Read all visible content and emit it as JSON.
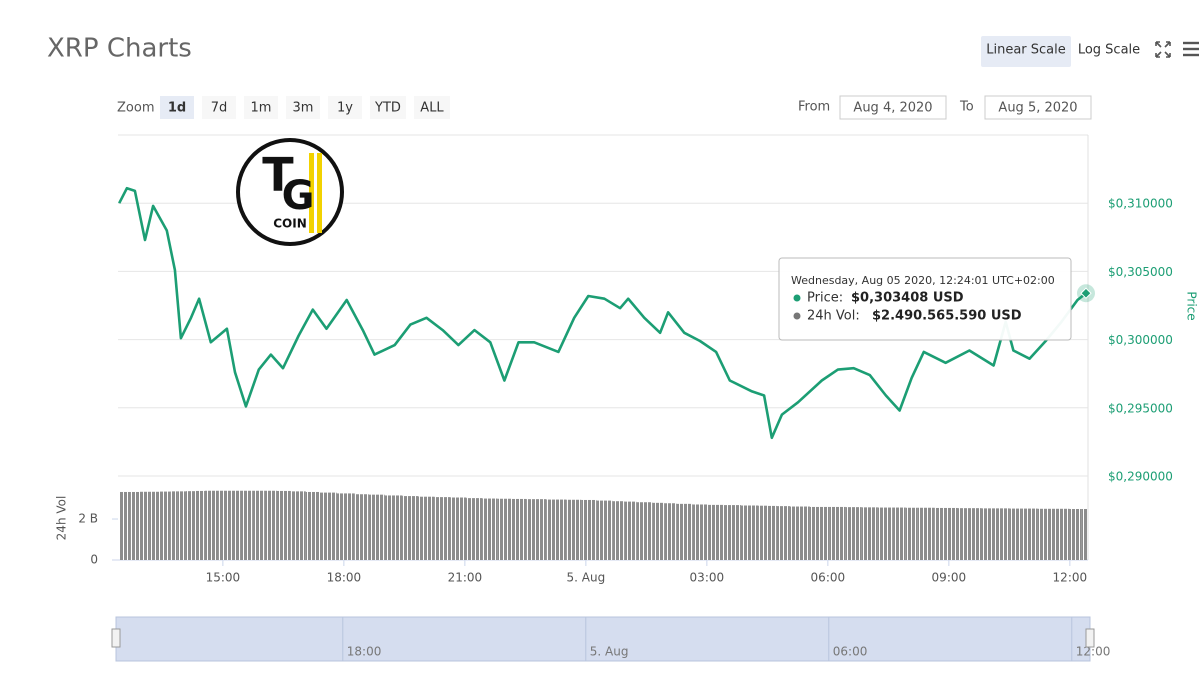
{
  "header": {
    "title": "XRP Charts",
    "scale_buttons": [
      "Linear Scale",
      "Log Scale"
    ]
  },
  "range_selector": {
    "label": "Zoom",
    "buttons": [
      "1d",
      "7d",
      "1m",
      "3m",
      "1y",
      "YTD",
      "ALL"
    ],
    "from_label": "From",
    "from": "Aug 4, 2020",
    "to_label": "To",
    "to": "Aug 5, 2020"
  },
  "logo": {
    "letters": [
      "T",
      "G"
    ],
    "text": "COIN"
  },
  "chart_data": {
    "type": "line",
    "x": [
      12.43,
      12.62,
      12.82,
      13.07,
      13.27,
      13.61,
      13.81,
      13.96,
      14.21,
      14.41,
      14.7,
      15.1,
      15.3,
      15.57,
      15.89,
      16.19,
      16.49,
      16.88,
      17.23,
      17.57,
      18.07,
      18.47,
      18.76,
      19.26,
      19.65,
      20.05,
      20.45,
      20.84,
      21.24,
      21.63,
      21.98,
      22.33,
      22.72,
      23.32,
      23.71,
      24.06,
      24.46,
      24.85,
      25.05,
      25.45,
      25.84,
      26.04,
      26.44,
      26.83,
      27.23,
      27.57,
      28.12,
      28.42,
      28.61,
      28.86,
      29.26,
      29.85,
      30.25,
      30.64,
      31.04,
      31.44,
      31.78,
      32.08,
      32.38,
      32.92,
      33.51,
      34.11,
      34.41,
      34.6,
      35.0,
      35.4,
      35.79,
      36.19,
      36.4
    ],
    "series": [
      {
        "name": "Price",
        "color": "#1c9e74",
        "values": [
          0.31,
          0.3111,
          0.3109,
          0.3073,
          0.3098,
          0.308,
          0.3051,
          0.3001,
          0.3016,
          0.303,
          0.2998,
          0.3008,
          0.2976,
          0.2951,
          0.2978,
          0.2989,
          0.2979,
          0.3003,
          0.3022,
          0.3008,
          0.3029,
          0.3007,
          0.2989,
          0.2996,
          0.3011,
          0.3016,
          0.3007,
          0.2996,
          0.3007,
          0.2998,
          0.297,
          0.2998,
          0.2998,
          0.2991,
          0.3016,
          0.3032,
          0.303,
          0.3023,
          0.303,
          0.3016,
          0.3005,
          0.302,
          0.3005,
          0.2999,
          0.2991,
          0.297,
          0.2962,
          0.2959,
          0.2928,
          0.2945,
          0.2954,
          0.297,
          0.2978,
          0.2979,
          0.2974,
          0.2959,
          0.2948,
          0.2972,
          0.2991,
          0.2983,
          0.2992,
          0.2981,
          0.3013,
          0.2992,
          0.2986,
          0.2999,
          0.3013,
          0.3029,
          0.3034
        ]
      },
      {
        "name": "24h Vol",
        "color": "#8c8c8c",
        "axis": "y2",
        "values": [
          3320000000.0,
          3320000000.0,
          3320000000.0,
          3330000000.0,
          3330000000.0,
          3340000000.0,
          3350000000.0,
          3350000000.0,
          3360000000.0,
          3370000000.0,
          3380000000.0,
          3380000000.0,
          3380000000.0,
          3380000000.0,
          3380000000.0,
          3380000000.0,
          3370000000.0,
          3350000000.0,
          3320000000.0,
          3290000000.0,
          3250000000.0,
          3210000000.0,
          3190000000.0,
          3150000000.0,
          3120000000.0,
          3090000000.0,
          3070000000.0,
          3050000000.0,
          3020000000.0,
          3000000000.0,
          2990000000.0,
          2980000000.0,
          2970000000.0,
          2950000000.0,
          2940000000.0,
          2930000000.0,
          2900000000.0,
          2870000000.0,
          2850000000.0,
          2820000000.0,
          2790000000.0,
          2770000000.0,
          2740000000.0,
          2710000000.0,
          2690000000.0,
          2680000000.0,
          2660000000.0,
          2650000000.0,
          2640000000.0,
          2630000000.0,
          2610000000.0,
          2590000000.0,
          2590000000.0,
          2580000000.0,
          2570000000.0,
          2560000000.0,
          2560000000.0,
          2550000000.0,
          2550000000.0,
          2540000000.0,
          2530000000.0,
          2520000000.0,
          2520000000.0,
          2510000000.0,
          2510000000.0,
          2500000000.0,
          2500000000.0,
          2490000000.0,
          2490000000.0
        ]
      }
    ],
    "xlim": [
      12.4,
      36.45
    ],
    "xticks": [
      {
        "value": 15,
        "label": "15:00"
      },
      {
        "value": 18,
        "label": "18:00"
      },
      {
        "value": 21,
        "label": "21:00"
      },
      {
        "value": 24,
        "label": "5. Aug"
      },
      {
        "value": 27,
        "label": "03:00"
      },
      {
        "value": 30,
        "label": "06:00"
      },
      {
        "value": 33,
        "label": "09:00"
      },
      {
        "value": 36,
        "label": "12:00"
      }
    ],
    "ylim": [
      0.29,
      0.315
    ],
    "yticks": [
      {
        "value": 0.29,
        "label": "$0,290000"
      },
      {
        "value": 0.295,
        "label": "$0,295000"
      },
      {
        "value": 0.3,
        "label": "$0,300000"
      },
      {
        "value": 0.305,
        "label": "$0,305000"
      },
      {
        "value": 0.31,
        "label": "$0,310000"
      }
    ],
    "y2lim": [
      0,
      4100000000.0
    ],
    "y2ticks": [
      0,
      {
        "value": 2000000000.0,
        "label": "2 B"
      }
    ],
    "grid": true,
    "tooltip": {
      "date": "Wednesday, Aug 05 2020, 12:24:01 UTC+02:00",
      "rows": [
        {
          "label": "Price:",
          "value": "$0,303408 USD"
        },
        {
          "label": "24h Vol:",
          "value": "$2.490.565.590 USD"
        }
      ]
    },
    "navigator": {
      "xticks": [
        {
          "value": 18,
          "label": "18:00"
        },
        {
          "value": 24,
          "label": "5. Aug"
        },
        {
          "value": 30,
          "label": "06:00"
        },
        {
          "value": 36,
          "label": "12:00"
        }
      ]
    }
  }
}
